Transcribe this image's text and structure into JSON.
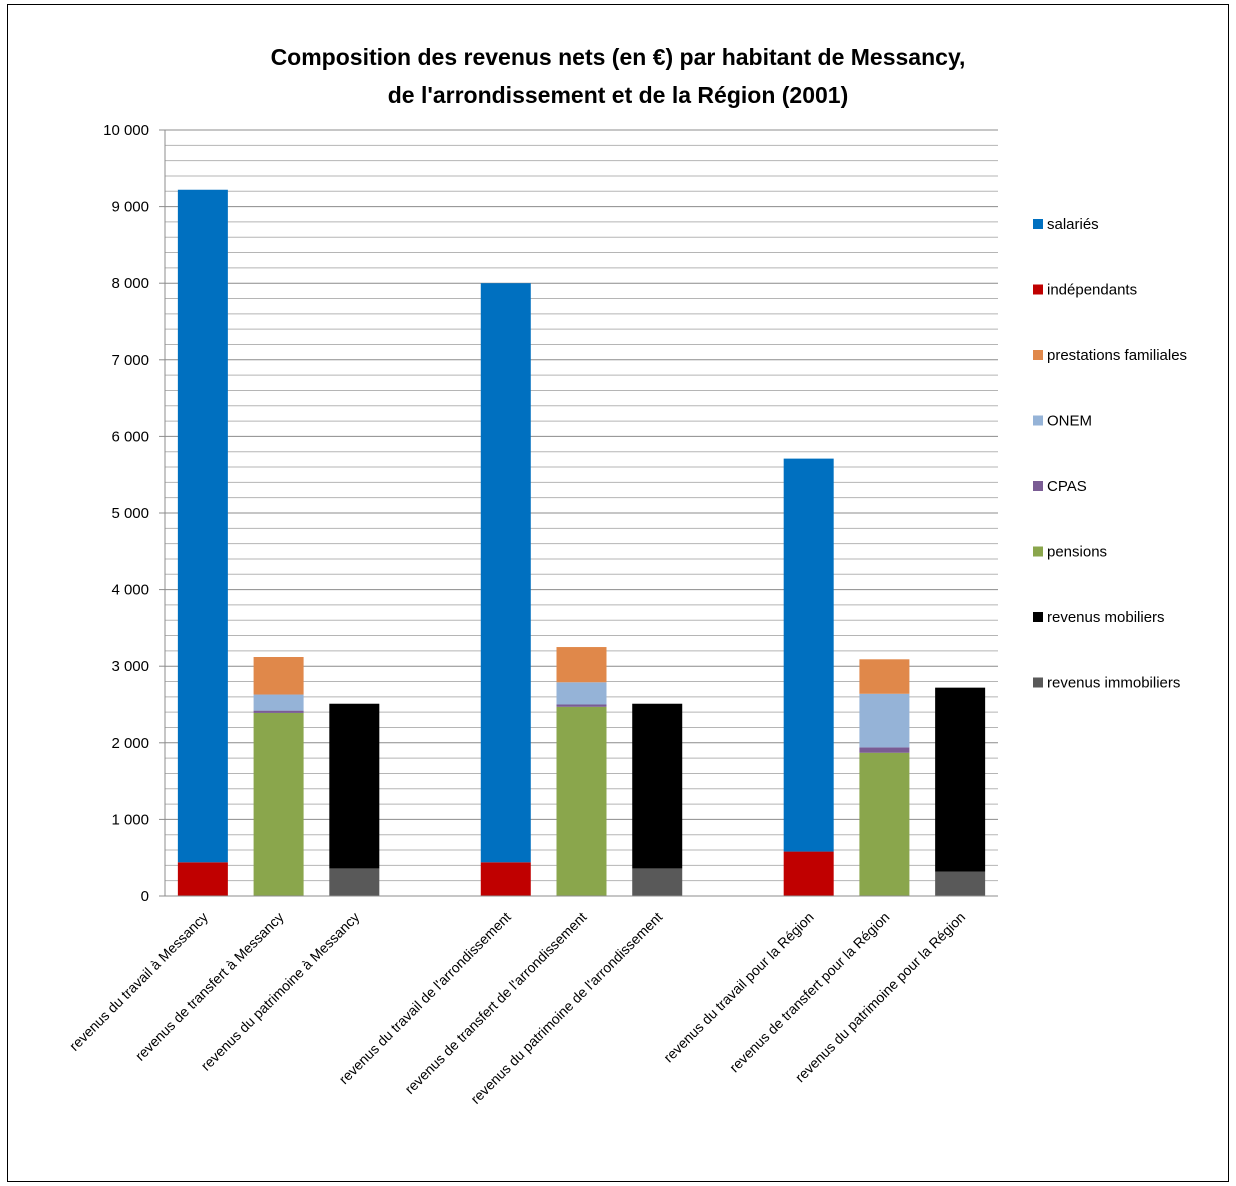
{
  "chart_data": {
    "type": "bar",
    "stacked": true,
    "title_line1": "Composition  des revenus nets (en €) par habitant de Messancy,",
    "title_line2": "de l'arrondissement  et de la Région (2001)",
    "xlabel": "",
    "ylabel": "",
    "ylim": [
      0,
      10000
    ],
    "yticks": [
      0,
      1000,
      2000,
      3000,
      4000,
      5000,
      6000,
      7000,
      8000,
      9000,
      10000
    ],
    "ytick_labels": [
      "0",
      "1 000",
      "2 000",
      "3 000",
      "4 000",
      "5 000",
      "6 000",
      "7 000",
      "8 000",
      "9 000",
      "10 000"
    ],
    "minor_grid_step": 200,
    "grid": true,
    "legend_position": "right",
    "categories": [
      "revenus du travail à Messancy",
      "revenus de transfert à Messancy",
      "revenus du patrimoine à Messancy",
      "",
      "revenus du travail de l'arrondissement",
      "revenus de transfert de l'arrondissement",
      "revenus du patrimoine de l'arrondissement",
      "",
      "revenus du travail  pour la Région",
      "revenus de transfert pour la Région",
      "revenus du patrimoine pour la Région"
    ],
    "series": [
      {
        "name": "salariés",
        "color": "#0070C0",
        "values": [
          8780,
          0,
          0,
          null,
          7560,
          0,
          0,
          null,
          5130,
          0,
          0
        ]
      },
      {
        "name": "indépendants",
        "color": "#C00000",
        "values": [
          440,
          0,
          0,
          null,
          440,
          0,
          0,
          null,
          580,
          0,
          0
        ]
      },
      {
        "name": "prestations familiales",
        "color": "#E0884A",
        "values": [
          0,
          490,
          0,
          null,
          0,
          460,
          0,
          null,
          0,
          450,
          0
        ]
      },
      {
        "name": "ONEM",
        "color": "#95B3D7",
        "values": [
          0,
          210,
          0,
          null,
          0,
          290,
          0,
          null,
          0,
          700,
          0
        ]
      },
      {
        "name": "CPAS",
        "color": "#7A5C94",
        "values": [
          0,
          30,
          0,
          null,
          0,
          30,
          0,
          null,
          0,
          70,
          0
        ]
      },
      {
        "name": "pensions",
        "color": "#8AA64C",
        "values": [
          0,
          2390,
          0,
          null,
          0,
          2470,
          0,
          null,
          0,
          1870,
          0
        ]
      },
      {
        "name": "revenus mobiliers",
        "color": "#000000",
        "values": [
          0,
          0,
          2150,
          null,
          0,
          0,
          2150,
          null,
          0,
          0,
          2400
        ]
      },
      {
        "name": "revenus immobiliers",
        "color": "#595959",
        "values": [
          0,
          0,
          360,
          null,
          0,
          0,
          360,
          null,
          0,
          0,
          320
        ]
      }
    ]
  }
}
